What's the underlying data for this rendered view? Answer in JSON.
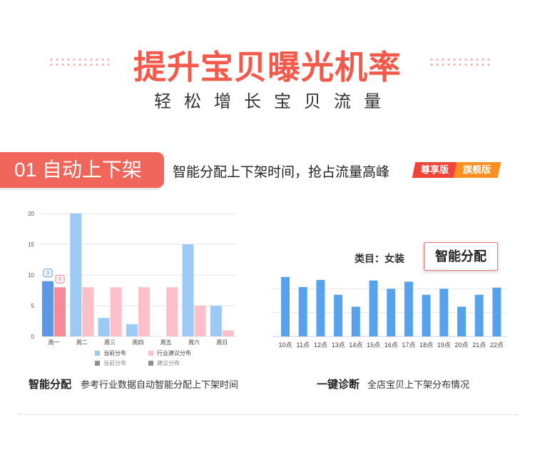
{
  "hero": {
    "title": "提升宝贝曝光机率",
    "subtitle": "轻松增长宝贝流量"
  },
  "section": {
    "number_label": "01 自动上下架",
    "tagline": "智能分配上下架时间，抢占流量高峰",
    "badges": [
      "尊享版",
      "旗舰版"
    ]
  },
  "colors": {
    "accent": "#f0665a",
    "current_dist": "#9ccaf4",
    "current_dist_highlight": "#5b98e6",
    "suggested_dist": "#fdc0c8",
    "suggested_dist_highlight": "#f58a9a",
    "diagnosis_bar": "#57a2ec"
  },
  "left_panel": {
    "caption_title": "智能分配",
    "caption_desc": "参考行业数据自动智能分配上下架时间"
  },
  "right_panel": {
    "category_label": "类目：女装",
    "smart_button": "智能分配",
    "caption_title": "一键诊断",
    "caption_desc": "全店宝贝上下架分布情况"
  },
  "chart_data": [
    {
      "type": "bar",
      "categories": [
        "周一",
        "周二",
        "周三",
        "周四",
        "周五",
        "周六",
        "周日"
      ],
      "series": [
        {
          "name": "当前分布",
          "values": [
            9,
            20,
            3,
            2,
            0,
            15,
            5
          ]
        },
        {
          "name": "行业建议分布",
          "values": [
            8,
            8,
            8,
            8,
            8,
            5,
            1
          ]
        }
      ],
      "legend": [
        "当前分布",
        "行业建议分布",
        "当前分布",
        "建议分布"
      ],
      "yticks": [
        0,
        5,
        10,
        15,
        20
      ],
      "ylim": [
        0,
        20
      ],
      "grid": true,
      "annotations": [
        {
          "category": "周一",
          "series": "当前分布",
          "text": "9"
        },
        {
          "category": "周一",
          "series": "行业建议分布",
          "text": "8"
        }
      ]
    },
    {
      "type": "bar",
      "categories": [
        "10点",
        "11点",
        "12点",
        "13点",
        "14点",
        "15点",
        "16点",
        "17点",
        "18点",
        "19点",
        "20点",
        "21点",
        "22点"
      ],
      "values": [
        10,
        8.3,
        9.5,
        7,
        5,
        9.4,
        8,
        9.2,
        7,
        8,
        5,
        7,
        8.2
      ],
      "ylim": [
        0,
        12
      ],
      "grid": true
    }
  ]
}
